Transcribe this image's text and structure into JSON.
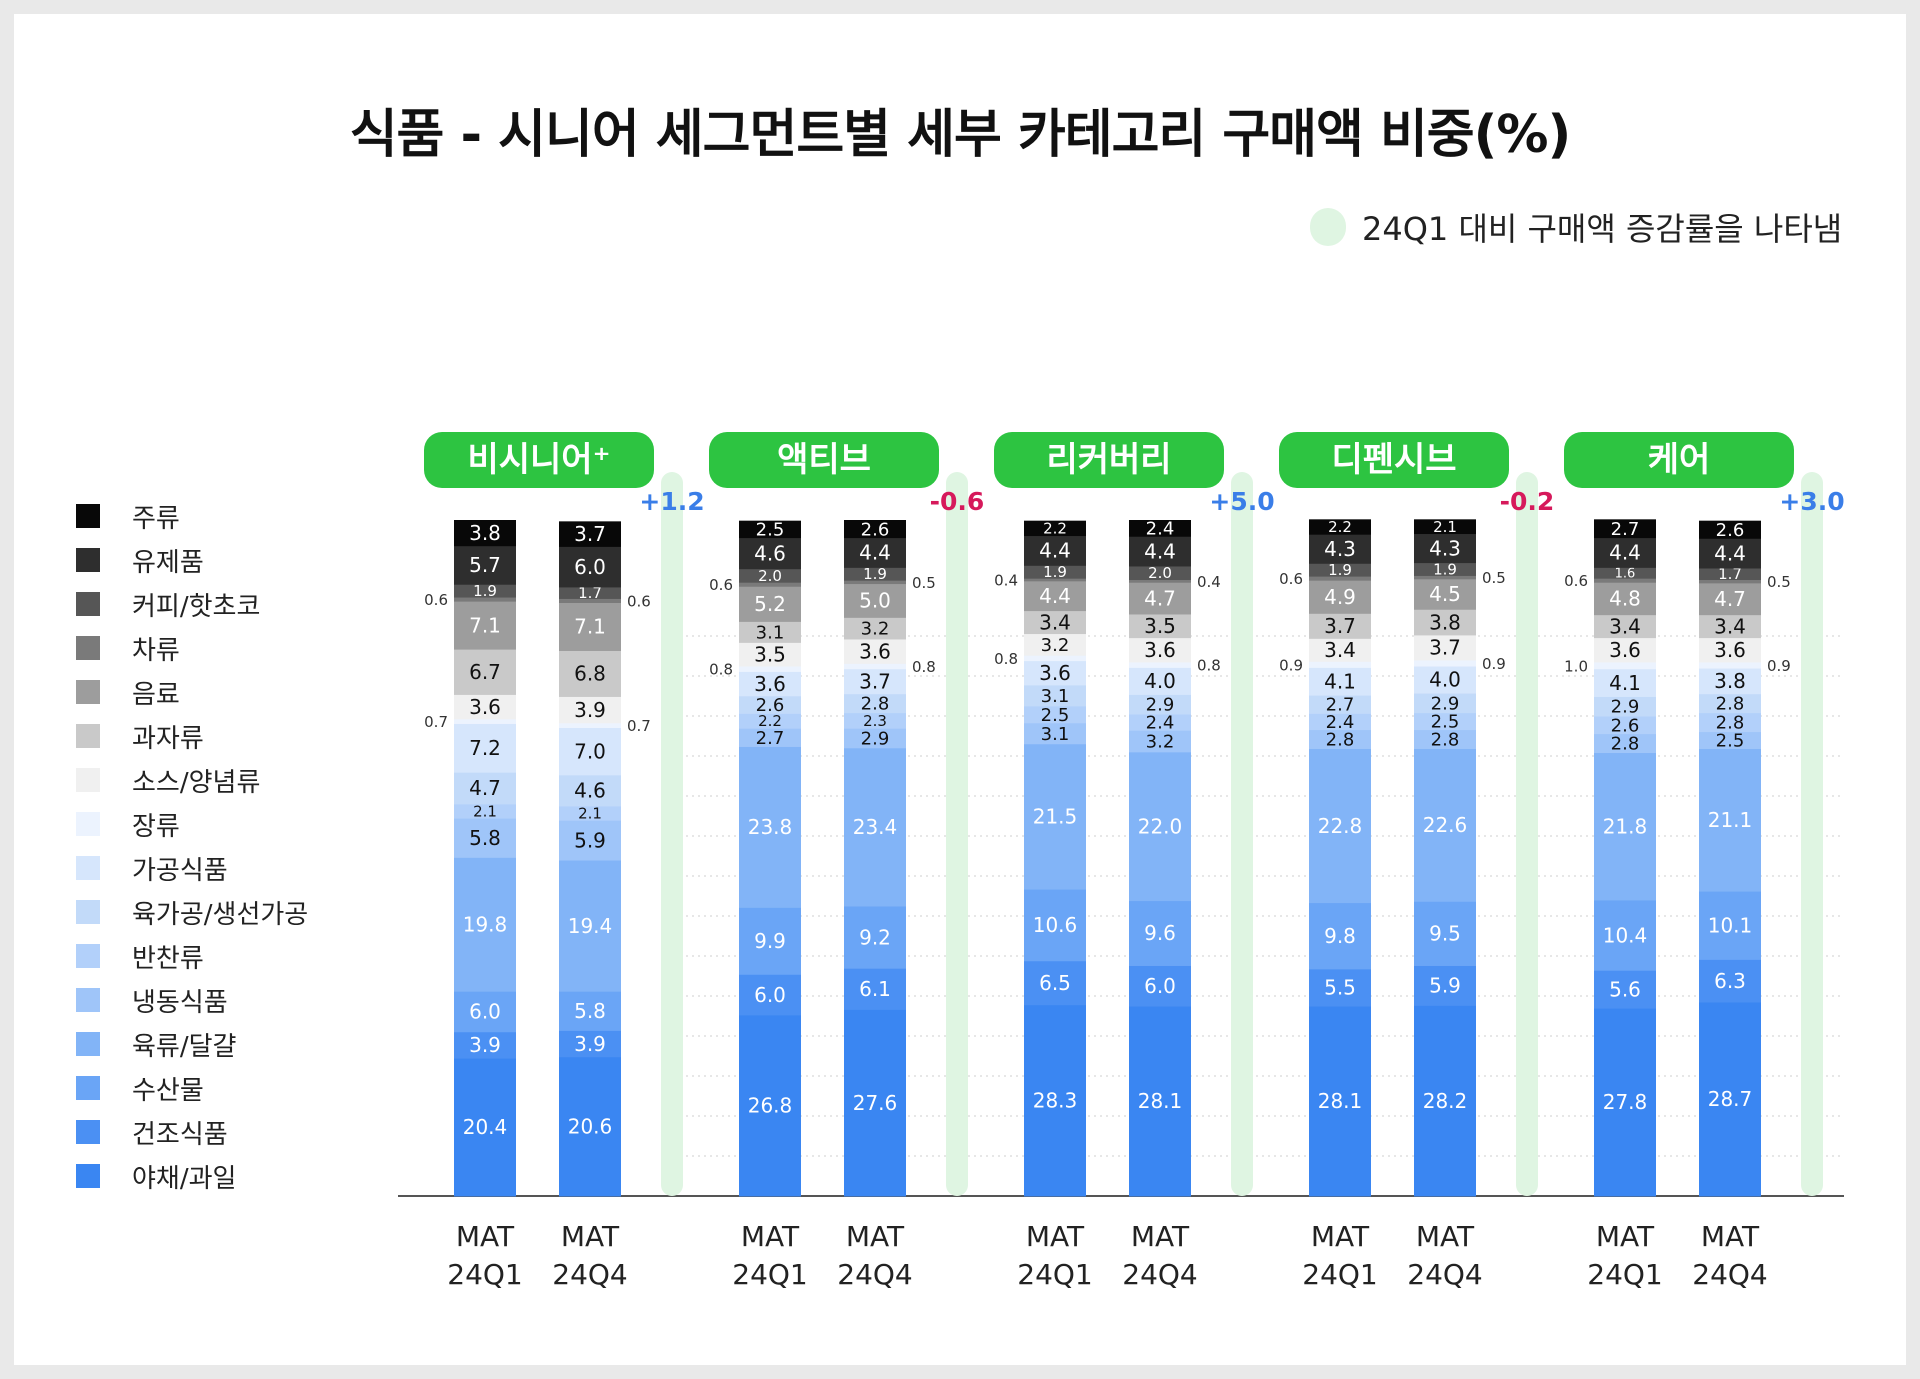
{
  "chart_data": {
    "type": "bar",
    "stacked": true,
    "title": "식품 - 시니어 세그먼트별 세부 카테고리 구매액 비중(%)",
    "change_legend": "24Q1 대비 구매액 증감률을 나타냄",
    "legend_placement": "left",
    "categories": [
      "야채/과일",
      "건조식품",
      "수산물",
      "육류/달걀",
      "냉동식품",
      "반찬류",
      "육가공/생선가공",
      "가공식품",
      "장류",
      "소스/양념류",
      "과자류",
      "음료",
      "차류",
      "커피/핫초코",
      "유제품",
      "주류"
    ],
    "category_colors": [
      "#3a86f2",
      "#4b90f3",
      "#6aa5f6",
      "#82b4f7",
      "#9fc5f9",
      "#b2d0fa",
      "#c2daf9",
      "#d6e6fc",
      "#ecf3fe",
      "#f0f0f0",
      "#c9c9c9",
      "#9d9d9d",
      "#7a7a7a",
      "#565656",
      "#2e2e2e",
      "#080808"
    ],
    "segments": [
      {
        "name": "비시니어⁺",
        "change": "+1.2",
        "change_color": "#3a7ee8",
        "bars": [
          {
            "label": [
              "MAT",
              "24Q1"
            ],
            "values": [
              20.4,
              3.9,
              6.0,
              19.8,
              5.8,
              2.1,
              4.7,
              7.2,
              0.7,
              3.6,
              6.7,
              7.1,
              0.6,
              1.9,
              5.7,
              3.8
            ]
          },
          {
            "label": [
              "MAT",
              "24Q4"
            ],
            "values": [
              20.6,
              3.9,
              5.8,
              19.4,
              5.9,
              2.1,
              4.6,
              7.0,
              0.7,
              3.9,
              6.8,
              7.1,
              0.6,
              1.7,
              6.0,
              3.7
            ]
          }
        ]
      },
      {
        "name": "액티브",
        "change": "-0.6",
        "change_color": "#d6195b",
        "bars": [
          {
            "label": [
              "MAT",
              "24Q1"
            ],
            "values": [
              26.8,
              6.0,
              9.9,
              23.8,
              2.7,
              2.2,
              2.6,
              3.6,
              0.8,
              3.5,
              3.1,
              5.2,
              0.6,
              2.0,
              4.6,
              2.5
            ]
          },
          {
            "label": [
              "MAT",
              "24Q4"
            ],
            "values": [
              27.6,
              6.1,
              9.2,
              23.4,
              2.9,
              2.3,
              2.8,
              3.7,
              0.8,
              3.6,
              3.2,
              5.0,
              0.5,
              1.9,
              4.4,
              2.6
            ]
          }
        ]
      },
      {
        "name": "리커버리",
        "change": "+5.0",
        "change_color": "#3a7ee8",
        "bars": [
          {
            "label": [
              "MAT",
              "24Q1"
            ],
            "values": [
              28.3,
              6.5,
              10.6,
              21.5,
              3.1,
              2.5,
              3.1,
              3.6,
              0.8,
              3.2,
              3.4,
              4.4,
              0.4,
              1.9,
              4.4,
              2.2
            ]
          },
          {
            "label": [
              "MAT",
              "24Q4"
            ],
            "values": [
              28.1,
              6.0,
              9.6,
              22.0,
              3.2,
              2.4,
              2.9,
              4.0,
              0.8,
              3.6,
              3.5,
              4.7,
              0.4,
              2.0,
              4.4,
              2.4
            ]
          }
        ]
      },
      {
        "name": "디펜시브",
        "change": "-0.2",
        "change_color": "#d6195b",
        "bars": [
          {
            "label": [
              "MAT",
              "24Q1"
            ],
            "values": [
              28.1,
              5.5,
              9.8,
              22.8,
              2.8,
              2.4,
              2.7,
              4.1,
              0.9,
              3.4,
              3.7,
              4.9,
              0.6,
              1.9,
              4.3,
              2.2
            ]
          },
          {
            "label": [
              "MAT",
              "24Q4"
            ],
            "values": [
              28.2,
              5.9,
              9.5,
              22.6,
              2.8,
              2.5,
              2.9,
              4.0,
              0.9,
              3.7,
              3.8,
              4.5,
              0.5,
              1.9,
              4.3,
              2.1
            ]
          }
        ]
      },
      {
        "name": "케어",
        "change": "+3.0",
        "change_color": "#3a7ee8",
        "bars": [
          {
            "label": [
              "MAT",
              "24Q1"
            ],
            "values": [
              27.8,
              5.6,
              10.4,
              21.8,
              2.8,
              2.6,
              2.9,
              4.1,
              1.0,
              3.6,
              3.4,
              4.8,
              0.6,
              1.6,
              4.4,
              2.7
            ]
          },
          {
            "label": [
              "MAT",
              "24Q4"
            ],
            "values": [
              28.7,
              6.3,
              10.1,
              21.1,
              2.5,
              2.8,
              2.8,
              3.8,
              0.9,
              3.6,
              3.4,
              4.7,
              0.5,
              1.7,
              4.4,
              2.6
            ]
          }
        ]
      }
    ],
    "ylim": [
      0,
      100
    ],
    "grid": "horizontal dotted",
    "segment_header_color": "#2dc441"
  }
}
